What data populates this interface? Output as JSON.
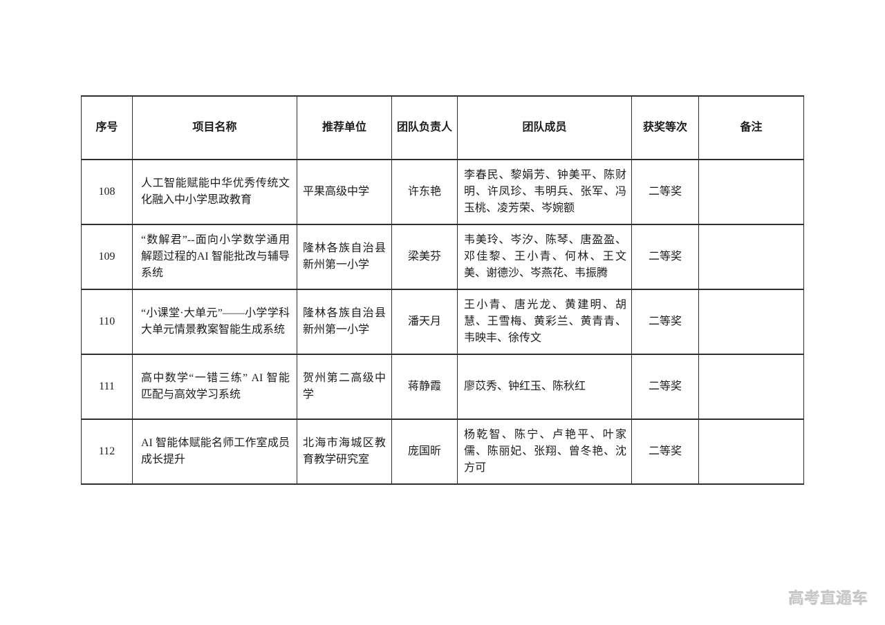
{
  "page": {
    "background": "#ffffff",
    "text_color": "#1c1c1c",
    "border_color": "#2e2e2e",
    "watermark": "高考直通车",
    "watermark_color": "#c9c9c9"
  },
  "table": {
    "columns": [
      {
        "key": "index",
        "label": "序号"
      },
      {
        "key": "project",
        "label": "项目名称"
      },
      {
        "key": "unit",
        "label": "推荐单位"
      },
      {
        "key": "leader",
        "label": "团队负责人"
      },
      {
        "key": "members",
        "label": "团队成员"
      },
      {
        "key": "award",
        "label": "获奖等次"
      },
      {
        "key": "remark",
        "label": "备注"
      }
    ],
    "rows": [
      {
        "index": "108",
        "project": "人工智能赋能中华优秀传统文化融入中小学思政教育",
        "unit": "平果高级中学",
        "leader": "许东艳",
        "members": "李春民、黎娟芳、钟美平、陈财明、许凤珍、韦明兵、张军、冯玉桃、凌芳荣、岑婉额",
        "award": "二等奖",
        "remark": ""
      },
      {
        "index": "109",
        "project": "“数解君”--面向小学数学通用解题过程的AI 智能批改与辅导系统",
        "unit": "隆林各族自治县新州第一小学",
        "leader": "梁美芬",
        "members": "韦美玲、岑汐、陈琴、唐盈盈、邓佳黎、王小青、何林、王文美、谢德沙、岑燕花、韦振腾",
        "award": "二等奖",
        "remark": ""
      },
      {
        "index": "110",
        "project": "“小课堂·大单元”——小学学科大单元情景教案智能生成系统",
        "unit": "隆林各族自治县新州第一小学",
        "leader": "潘天月",
        "members": "王小青、唐光龙、黄建明、胡慧、王雪梅、黄彩兰、黄青青、韦映丰、徐传文",
        "award": "二等奖",
        "remark": ""
      },
      {
        "index": "111",
        "project": "高中数学“一错三练” AI 智能匹配与高效学习系统",
        "unit": "贺州第二高级中学",
        "leader": "蒋静霞",
        "members": "廖苡秀、钟红玉、陈秋红",
        "award": "二等奖",
        "remark": ""
      },
      {
        "index": "112",
        "project": "AI 智能体赋能名师工作室成员成长提升",
        "unit": "北海市海城区教育教学研究室",
        "leader": "庞国昕",
        "members": "杨乾智、陈宁、卢艳平、叶家儒、陈丽妃、张翔、曾冬艳、沈方可",
        "award": "二等奖",
        "remark": ""
      }
    ]
  }
}
